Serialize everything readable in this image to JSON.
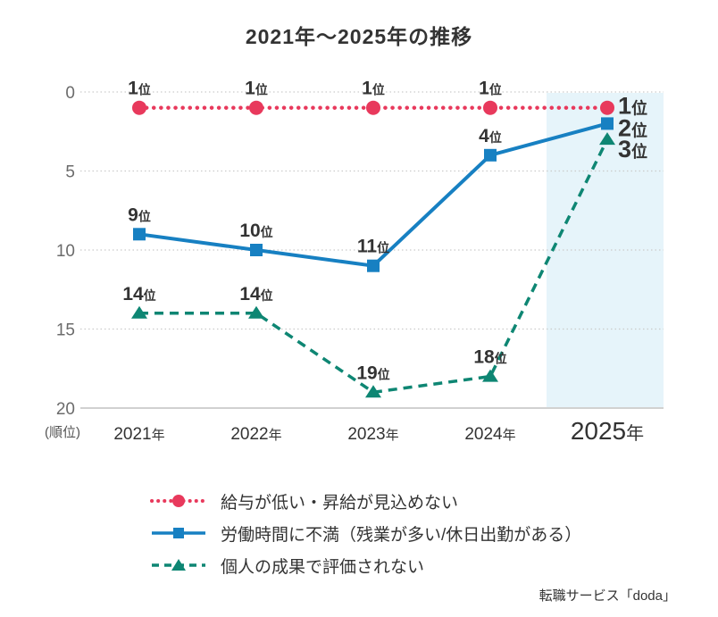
{
  "title": "2021年〜2025年の推移",
  "source": "転職サービス「doda」",
  "colors": {
    "red": "#e8395c",
    "blue": "#1780c2",
    "green": "#0e8673",
    "highlight": "#e6f4fa",
    "grid": "#cbcbcb",
    "axis": "#c2c2c2",
    "label_text": "#333333",
    "tick_text": "#6b6b6b"
  },
  "chart_data": {
    "type": "line",
    "title": "2021年〜2025年の推移",
    "x_categories": [
      "2021年",
      "2022年",
      "2023年",
      "2024年",
      "2025年"
    ],
    "x_year_numbers": [
      "2021",
      "2022",
      "2023",
      "2024",
      "2025"
    ],
    "x_year_suffix": "年",
    "y_axis": {
      "ticks": [
        0,
        5,
        10,
        15,
        20
      ],
      "tick_labels": [
        "0",
        "5",
        "10",
        "15",
        "20"
      ],
      "unit_label": "(順位)",
      "inverted": true,
      "range": [
        0,
        20
      ]
    },
    "rank_suffix": "位",
    "highlight_column": "2025年",
    "legend_position": "bottom",
    "grid": "dotted horizontal",
    "series": [
      {
        "name": "給与が低い・昇給が見込めない",
        "color": "#e8395c",
        "marker": "circle",
        "line_style": "dotted",
        "values": [
          1,
          1,
          1,
          1,
          1
        ],
        "point_labels": [
          "1位",
          "1位",
          "1位",
          "1位",
          "1位"
        ]
      },
      {
        "name": "労働時間に不満（残業が多い/休日出勤がある）",
        "color": "#1780c2",
        "marker": "square",
        "line_style": "solid",
        "values": [
          9,
          10,
          11,
          4,
          2
        ],
        "point_labels": [
          "9位",
          "10位",
          "11位",
          "4位",
          "2位"
        ]
      },
      {
        "name": "個人の成果で評価されない",
        "color": "#0e8673",
        "marker": "triangle",
        "line_style": "dashed",
        "values": [
          14,
          14,
          19,
          18,
          3
        ],
        "point_labels": [
          "14位",
          "14位",
          "19位",
          "18位",
          "3位"
        ]
      }
    ]
  }
}
